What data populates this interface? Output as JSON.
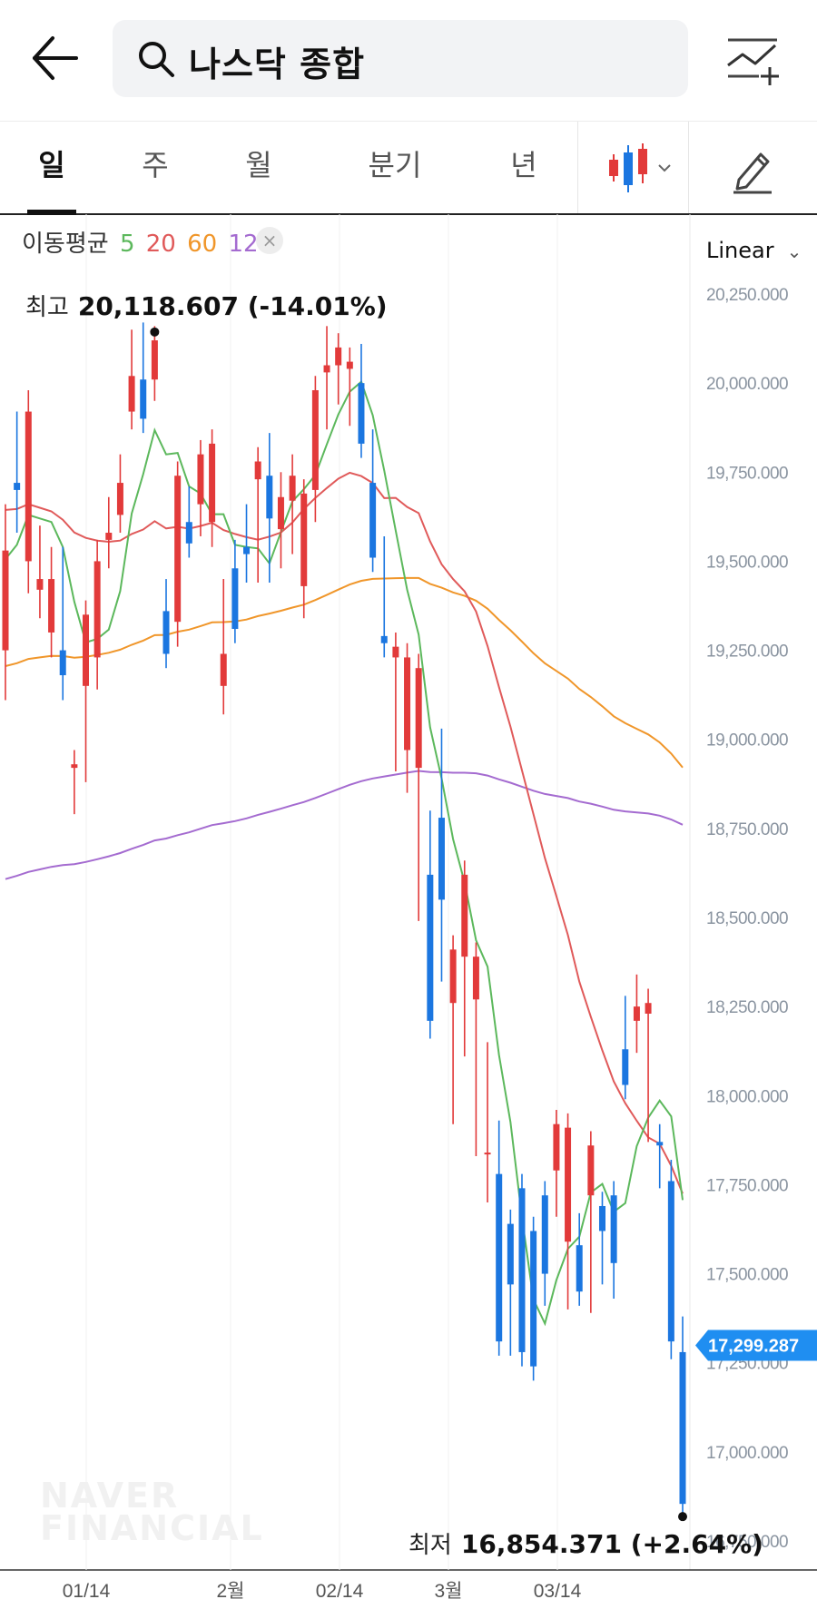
{
  "search": {
    "query": "나스닥 종합"
  },
  "tabs": [
    {
      "label": "일",
      "active": true
    },
    {
      "label": "주",
      "active": false
    },
    {
      "label": "월",
      "active": false
    },
    {
      "label": "분기",
      "active": false
    },
    {
      "label": "년",
      "active": false
    }
  ],
  "icons": {
    "back": "arrow-left-icon",
    "search": "search-icon",
    "compare": "chart-add-icon",
    "candle_type": "candlestick-icon",
    "draw": "pencil-icon"
  },
  "legend": {
    "title": "이동평균",
    "ma": [
      {
        "label": "5",
        "color": "#5cb85c"
      },
      {
        "label": "20",
        "color": "#e05a5a"
      },
      {
        "label": "60",
        "color": "#f0962a"
      },
      {
        "label": "120",
        "color": "#a46bd0"
      }
    ],
    "close_symbol": "×"
  },
  "scale": {
    "label": "Linear"
  },
  "high": {
    "label": "최고",
    "value": "20,118.607 (-14.01%)"
  },
  "low": {
    "label": "최저",
    "value": "16,854.371 (+2.64%)"
  },
  "current_price": "17,299.287",
  "watermark": [
    "NAVER",
    "FINANCIAL"
  ],
  "colors": {
    "up": "#e23a3a",
    "down": "#1b76e0",
    "price_tag": "#1f8ef1"
  },
  "chart_data": {
    "type": "candlestick",
    "yaxis": {
      "ticks": [
        "20,250.000",
        "20,000.000",
        "19,750.000",
        "19,500.000",
        "19,250.000",
        "19,000.000",
        "18,750.000",
        "18,500.000",
        "18,250.000",
        "18,000.000",
        "17,750.000",
        "17,500.000",
        "17,250.000",
        "17,000.000",
        "16,750.000"
      ],
      "range": [
        16750,
        20250
      ]
    },
    "xaxis": {
      "ticks": [
        "01/14",
        "2월",
        "02/14",
        "3월",
        "03/14"
      ]
    },
    "candles": [
      [
        19250,
        19620,
        19150,
        19530
      ],
      [
        19720,
        19880,
        19620,
        19700
      ],
      [
        19500,
        19940,
        19450,
        19920
      ],
      [
        19420,
        19560,
        19380,
        19450
      ],
      [
        19300,
        19500,
        19270,
        19450
      ],
      [
        19250,
        19500,
        19150,
        19180
      ],
      [
        18920,
        18870,
        18830,
        18930
      ],
      [
        19150,
        19290,
        18920,
        19350
      ],
      [
        19230,
        19520,
        19180,
        19500
      ],
      [
        19560,
        19640,
        19520,
        19580
      ],
      [
        19630,
        19760,
        19620,
        19720
      ],
      [
        19920,
        20110,
        19910,
        20020
      ],
      [
        20010,
        20130,
        19930,
        19900
      ],
      [
        20010,
        20119,
        19990,
        20120
      ],
      [
        19360,
        19410,
        19280,
        19240
      ],
      [
        19330,
        19660,
        19300,
        19740
      ],
      [
        19610,
        19670,
        19560,
        19550
      ],
      [
        19660,
        19660,
        19610,
        19800
      ],
      [
        19610,
        19620,
        19580,
        19830
      ],
      [
        19150,
        19410,
        19110,
        19240
      ],
      [
        19480,
        19520,
        19310,
        19310
      ],
      [
        19540,
        19620,
        19480,
        19520
      ],
      [
        19730,
        19600,
        19480,
        19780
      ],
      [
        19740,
        19820,
        19480,
        19620
      ],
      [
        19590,
        19710,
        19520,
        19680
      ],
      [
        19670,
        19760,
        19560,
        19740
      ],
      [
        19430,
        19690,
        19380,
        19690
      ],
      [
        19700,
        19750,
        19650,
        19980
      ],
      [
        20030,
        20120,
        19910,
        20050
      ],
      [
        20050,
        20000,
        19980,
        20100
      ],
      [
        20040,
        19950,
        19920,
        20060
      ],
      [
        20000,
        20070,
        19860,
        19830
      ],
      [
        19720,
        19830,
        19530,
        19510
      ],
      [
        19290,
        19530,
        19280,
        19270
      ],
      [
        19230,
        19070,
        18950,
        19260
      ],
      [
        18970,
        19180,
        18890,
        19230
      ],
      [
        18920,
        18540,
        18530,
        19200
      ],
      [
        18620,
        18760,
        18200,
        18210
      ],
      [
        18780,
        18990,
        18360,
        18550
      ],
      [
        18260,
        18060,
        17960,
        18410
      ],
      [
        18390,
        18510,
        18150,
        18620
      ],
      [
        18270,
        18070,
        17870,
        18390
      ],
      [
        17840,
        18110,
        17740,
        17840
      ],
      [
        17780,
        17890,
        17560,
        17310
      ],
      [
        17640,
        17470,
        17310,
        17470
      ],
      [
        17740,
        17740,
        17600,
        17280
      ],
      [
        17620,
        17310,
        17280,
        17240
      ],
      [
        17720,
        17550,
        17450,
        17500
      ],
      [
        17790,
        17830,
        17700,
        17920
      ],
      [
        17590,
        17440,
        17450,
        17910
      ],
      [
        17580,
        17630,
        17520,
        17450
      ],
      [
        17720,
        17690,
        17430,
        17860
      ],
      [
        17690,
        17600,
        17510,
        17620
      ],
      [
        17720,
        17720,
        17470,
        17530
      ],
      [
        18130,
        18240,
        18040,
        18030
      ],
      [
        18210,
        18300,
        18160,
        18250
      ],
      [
        18230,
        17930,
        17910,
        18260
      ],
      [
        17870,
        17780,
        17880,
        17860
      ],
      [
        17760,
        17780,
        17300,
        17310
      ],
      [
        17280,
        17340,
        16990,
        16854
      ]
    ]
  }
}
